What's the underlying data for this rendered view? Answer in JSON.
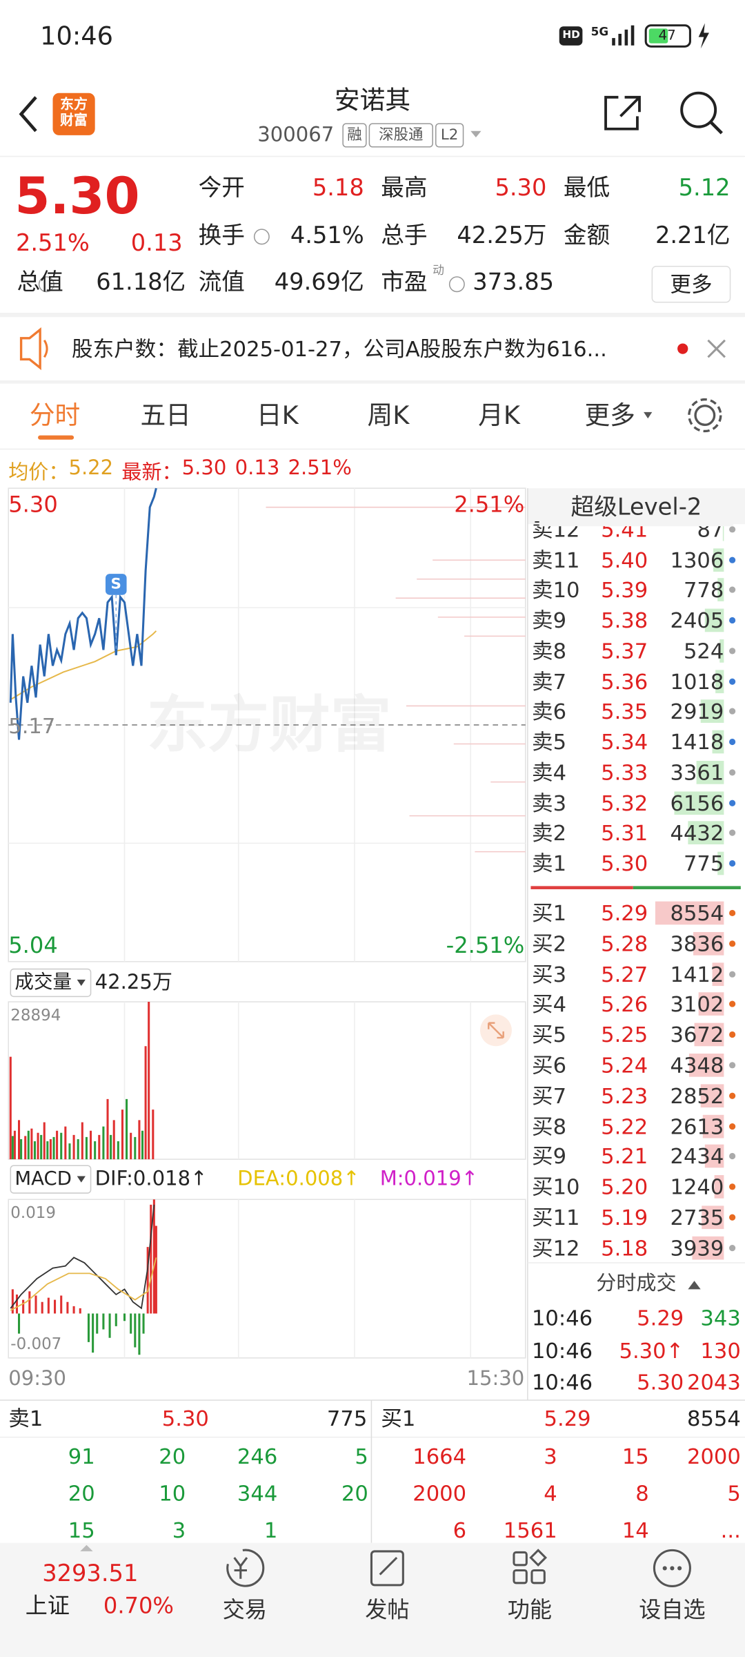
{
  "status": {
    "time": "10:46",
    "network": "5G",
    "battery": "47"
  },
  "header": {
    "logo": "东方财富",
    "title": "安诺其",
    "code": "300067",
    "tags": [
      "融",
      "深股通",
      "L2"
    ]
  },
  "quote": {
    "price": "5.30",
    "change_pct": "2.51%",
    "change": "0.13",
    "fields": [
      {
        "label": "今开",
        "value": "5.18",
        "color": "#e02020"
      },
      {
        "label": "最高",
        "value": "5.30",
        "color": "#e02020"
      },
      {
        "label": "最低",
        "value": "5.12",
        "color": "#1a9a3a"
      },
      {
        "label": "换手",
        "value": "4.51%",
        "color": "#222222"
      },
      {
        "label": "总手",
        "value": "42.25万",
        "color": "#222222"
      },
      {
        "label": "金额",
        "value": "2.21亿",
        "color": "#222222"
      },
      {
        "label": "总值",
        "value": "61.18亿",
        "color": "#222222"
      },
      {
        "label": "流值",
        "value": "49.69亿",
        "color": "#222222"
      },
      {
        "label": "市盈",
        "tag": "动",
        "value": "373.85",
        "color": "#222222"
      }
    ],
    "more": "更多"
  },
  "notice": {
    "text": "股东户数：截止2025-01-27，公司A股股东户数为616..."
  },
  "tabs": [
    "分时",
    "五日",
    "日K",
    "周K",
    "月K",
    "更多"
  ],
  "summary": {
    "avg_label": "均价：",
    "avg": "5.22",
    "latest_label": "最新：",
    "latest": "5.30",
    "change": "0.13",
    "change_pct": "2.51%"
  },
  "price_chart": {
    "high": "5.30",
    "base": "5.17",
    "low": "5.04",
    "high_pct": "2.51%",
    "low_pct": "-2.51%",
    "marker": "S",
    "watermark": "东方财富"
  },
  "volume_chart": {
    "label": "成交量",
    "total": "42.25万",
    "max": "28894"
  },
  "macd_chart": {
    "label": "MACD",
    "dif": "DIF:0.018↑",
    "dea": "DEA:0.008↑",
    "m": "M:0.019↑",
    "max": "0.019",
    "min": "-0.007",
    "start": "09:30",
    "end": "15:30"
  },
  "order_book": {
    "title": "超级Level-2",
    "asks": [
      {
        "label": "卖12",
        "price": "5.41",
        "volume": 87
      },
      {
        "label": "卖11",
        "price": "5.40",
        "volume": 1306
      },
      {
        "label": "卖10",
        "price": "5.39",
        "volume": 778
      },
      {
        "label": "卖9",
        "price": "5.38",
        "volume": 2405
      },
      {
        "label": "卖8",
        "price": "5.37",
        "volume": 524
      },
      {
        "label": "卖7",
        "price": "5.36",
        "volume": 1018
      },
      {
        "label": "卖6",
        "price": "5.35",
        "volume": 2919
      },
      {
        "label": "卖5",
        "price": "5.34",
        "volume": 1418
      },
      {
        "label": "卖4",
        "price": "5.33",
        "volume": 3361
      },
      {
        "label": "卖3",
        "price": "5.32",
        "volume": 6156
      },
      {
        "label": "卖2",
        "price": "5.31",
        "volume": 4432
      },
      {
        "label": "卖1",
        "price": "5.30",
        "volume": 775
      }
    ],
    "bids": [
      {
        "label": "买1",
        "price": "5.29",
        "volume": 8554
      },
      {
        "label": "买2",
        "price": "5.28",
        "volume": 3836
      },
      {
        "label": "买3",
        "price": "5.27",
        "volume": 1412
      },
      {
        "label": "买4",
        "price": "5.26",
        "volume": 3102
      },
      {
        "label": "买5",
        "price": "5.25",
        "volume": 3672
      },
      {
        "label": "买6",
        "price": "5.24",
        "volume": 4348
      },
      {
        "label": "买7",
        "price": "5.23",
        "volume": 2852
      },
      {
        "label": "买8",
        "price": "5.22",
        "volume": 2613
      },
      {
        "label": "买9",
        "price": "5.21",
        "volume": 2434
      },
      {
        "label": "买10",
        "price": "5.20",
        "volume": 1240
      },
      {
        "label": "买11",
        "price": "5.19",
        "volume": 2735
      },
      {
        "label": "买12",
        "price": "5.18",
        "volume": 3939
      }
    ]
  },
  "trades": {
    "title": "分时成交",
    "rows": [
      {
        "time": "10:46",
        "price": "5.29",
        "volume": 343,
        "color": "#1a9a3a"
      },
      {
        "time": "10:46",
        "price": "5.30↑",
        "volume": 130,
        "color": "#e02020"
      },
      {
        "time": "10:46",
        "price": "5.30",
        "volume": 2043,
        "color": "#e02020"
      }
    ]
  },
  "depth_table": {
    "ask": {
      "label": "卖1",
      "price": "5.30",
      "volume": 775,
      "rows": [
        [
          91,
          20,
          246,
          5
        ],
        [
          20,
          10,
          344,
          20
        ],
        [
          15,
          3,
          1
        ]
      ]
    },
    "bid": {
      "label": "买1",
      "price": "5.29",
      "volume": 8554,
      "rows": [
        [
          1664,
          3,
          15,
          2000
        ],
        [
          2000,
          4,
          8,
          5
        ],
        [
          6,
          1561,
          14,
          "..."
        ]
      ]
    }
  },
  "bottom_nav": {
    "index_value": "3293.51",
    "index_name": "上证",
    "index_change": "0.70%",
    "items": [
      "交易",
      "发帖",
      "功能",
      "设自选"
    ]
  }
}
